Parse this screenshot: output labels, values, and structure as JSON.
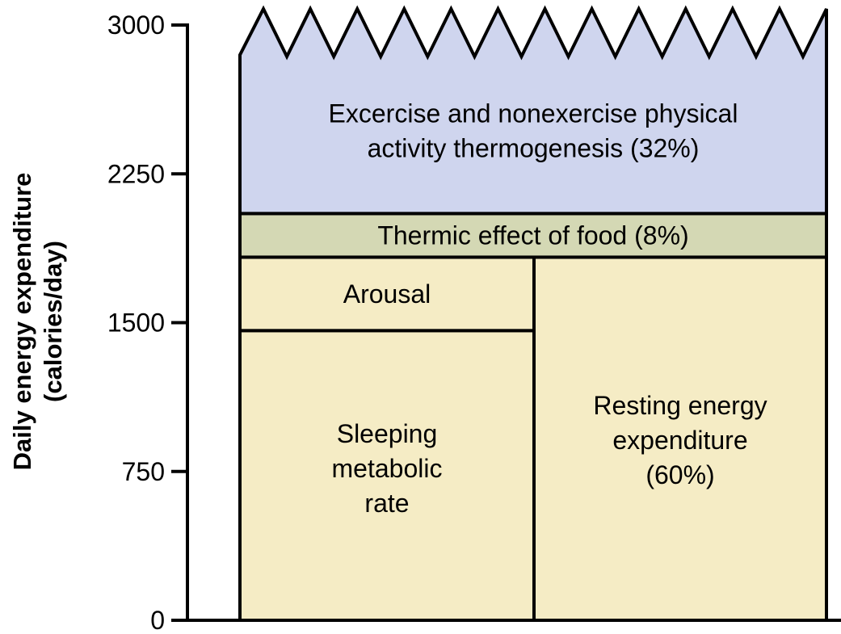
{
  "chart_data": {
    "type": "stacked-bar",
    "ylabel": [
      "Daily energy expenditure",
      "(calories/day)"
    ],
    "ylim": [
      0,
      3000
    ],
    "yticks": [
      "0",
      "750",
      "1500",
      "2250",
      "3000"
    ],
    "ytick_values": [
      0,
      750,
      1500,
      2250,
      3000
    ],
    "segments": [
      {
        "key": "sleeping",
        "label": [
          "Sleeping",
          "metabolic",
          "rate"
        ],
        "from": 0,
        "to": 1460,
        "column": "left",
        "color": "#f5ecc5"
      },
      {
        "key": "arousal",
        "label": [
          "Arousal"
        ],
        "from": 1460,
        "to": 1830,
        "column": "left",
        "color": "#f5ecc5"
      },
      {
        "key": "resting",
        "label": [
          "Resting energy",
          "expenditure",
          "(60%)"
        ],
        "from": 0,
        "to": 1830,
        "column": "right",
        "color": "#f5ecc5"
      },
      {
        "key": "thermic",
        "label": [
          "Thermic effect of food (8%)"
        ],
        "from": 1830,
        "to": 2050,
        "column": "full",
        "color": "#d4d8b4"
      },
      {
        "key": "activity",
        "label": [
          "Excercise and nonexercise physical",
          "activity thermogenesis (32%)"
        ],
        "from": 2050,
        "to": 3080,
        "column": "full",
        "color": "#cfd5ee",
        "jagged_top": true
      }
    ]
  }
}
